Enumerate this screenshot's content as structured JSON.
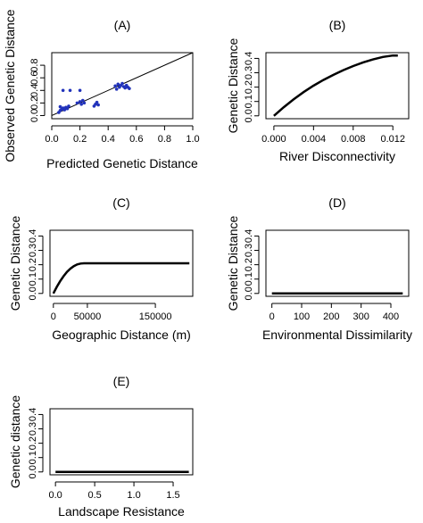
{
  "chart_data": [
    {
      "id": "A",
      "type": "scatter",
      "title": "(A)",
      "xlabel": "Predicted Genetic Distance",
      "ylabel": "Observed Genetic Distance",
      "xlim": [
        0,
        1.0
      ],
      "ylim": [
        -0.05,
        1.0
      ],
      "xticks": [
        "0.0",
        "0.2",
        "0.4",
        "0.6",
        "0.8",
        "1.0"
      ],
      "yticks": [
        "0.0",
        "0.2",
        "0.4",
        "0.6",
        "0.8"
      ],
      "reference_line": {
        "x": [
          0,
          1.0
        ],
        "y": [
          0,
          1.0
        ]
      },
      "point_color": "#2233bb",
      "points": [
        {
          "x": 0.05,
          "y": 0.05
        },
        {
          "x": 0.06,
          "y": 0.08
        },
        {
          "x": 0.07,
          "y": 0.1
        },
        {
          "x": 0.08,
          "y": 0.12
        },
        {
          "x": 0.06,
          "y": 0.14
        },
        {
          "x": 0.09,
          "y": 0.09
        },
        {
          "x": 0.1,
          "y": 0.13
        },
        {
          "x": 0.11,
          "y": 0.11
        },
        {
          "x": 0.12,
          "y": 0.15
        },
        {
          "x": 0.08,
          "y": 0.4
        },
        {
          "x": 0.13,
          "y": 0.4
        },
        {
          "x": 0.2,
          "y": 0.4
        },
        {
          "x": 0.18,
          "y": 0.2
        },
        {
          "x": 0.2,
          "y": 0.22
        },
        {
          "x": 0.21,
          "y": 0.18
        },
        {
          "x": 0.23,
          "y": 0.2
        },
        {
          "x": 0.22,
          "y": 0.24
        },
        {
          "x": 0.3,
          "y": 0.15
        },
        {
          "x": 0.31,
          "y": 0.18
        },
        {
          "x": 0.32,
          "y": 0.21
        },
        {
          "x": 0.33,
          "y": 0.17
        },
        {
          "x": 0.45,
          "y": 0.47
        },
        {
          "x": 0.47,
          "y": 0.5
        },
        {
          "x": 0.48,
          "y": 0.45
        },
        {
          "x": 0.49,
          "y": 0.48
        },
        {
          "x": 0.5,
          "y": 0.51
        },
        {
          "x": 0.51,
          "y": 0.46
        },
        {
          "x": 0.52,
          "y": 0.44
        },
        {
          "x": 0.53,
          "y": 0.48
        },
        {
          "x": 0.54,
          "y": 0.45
        },
        {
          "x": 0.55,
          "y": 0.43
        },
        {
          "x": 0.46,
          "y": 0.42
        }
      ]
    },
    {
      "id": "B",
      "type": "line",
      "title": "(B)",
      "xlabel": "River Disconnectivity",
      "ylabel": "Genetic Distance",
      "xlim": [
        -0.0008,
        0.0136
      ],
      "ylim": [
        -0.02,
        0.44
      ],
      "xticks": [
        "0.000",
        "0.004",
        "0.008",
        "0.012"
      ],
      "yticks": [
        "0.0",
        "0.1",
        "0.2",
        "0.3",
        "0.4"
      ],
      "x": [
        0.0,
        0.001,
        0.002,
        0.003,
        0.004,
        0.005,
        0.006,
        0.007,
        0.008,
        0.009,
        0.01,
        0.011,
        0.012,
        0.0125
      ],
      "y": [
        0.0,
        0.06,
        0.115,
        0.165,
        0.21,
        0.25,
        0.285,
        0.318,
        0.347,
        0.372,
        0.393,
        0.41,
        0.42,
        0.42
      ]
    },
    {
      "id": "C",
      "type": "line",
      "title": "(C)",
      "xlabel": "Geographic Distance (m)",
      "ylabel": "Genetic Distance",
      "xlim": [
        -5000,
        205000
      ],
      "ylim": [
        -0.02,
        0.44
      ],
      "xticks": [
        "0",
        "50000",
        "150000"
      ],
      "yticks": [
        "0.0",
        "0.1",
        "0.2",
        "0.3",
        "0.4"
      ],
      "x": [
        0,
        5000,
        10000,
        15000,
        20000,
        25000,
        30000,
        35000,
        40000,
        45000,
        200000
      ],
      "y": [
        0.0,
        0.045,
        0.085,
        0.12,
        0.15,
        0.173,
        0.19,
        0.202,
        0.208,
        0.21,
        0.21
      ]
    },
    {
      "id": "D",
      "type": "line",
      "title": "(D)",
      "xlabel": "Environmental Dissimilarity",
      "ylabel": "Genetic Distance",
      "xlim": [
        -20,
        460
      ],
      "ylim": [
        -0.02,
        0.44
      ],
      "xticks": [
        "0",
        "100",
        "200",
        "300",
        "400"
      ],
      "yticks": [
        "0.0",
        "0.1",
        "0.2",
        "0.3",
        "0.4"
      ],
      "x": [
        0,
        440
      ],
      "y": [
        0.0,
        0.0
      ]
    },
    {
      "id": "E",
      "type": "line",
      "title": "(E)",
      "xlabel": "Landscape Resistance",
      "ylabel": "Genetic distance",
      "xlim": [
        -0.07,
        1.75
      ],
      "ylim": [
        -0.02,
        0.44
      ],
      "xticks": [
        "0.0",
        "0.5",
        "1.0",
        "1.5"
      ],
      "yticks": [
        "0.0",
        "0.1",
        "0.2",
        "0.3",
        "0.4"
      ],
      "x": [
        0.0,
        1.7
      ],
      "y": [
        0.0,
        0.0
      ]
    }
  ]
}
